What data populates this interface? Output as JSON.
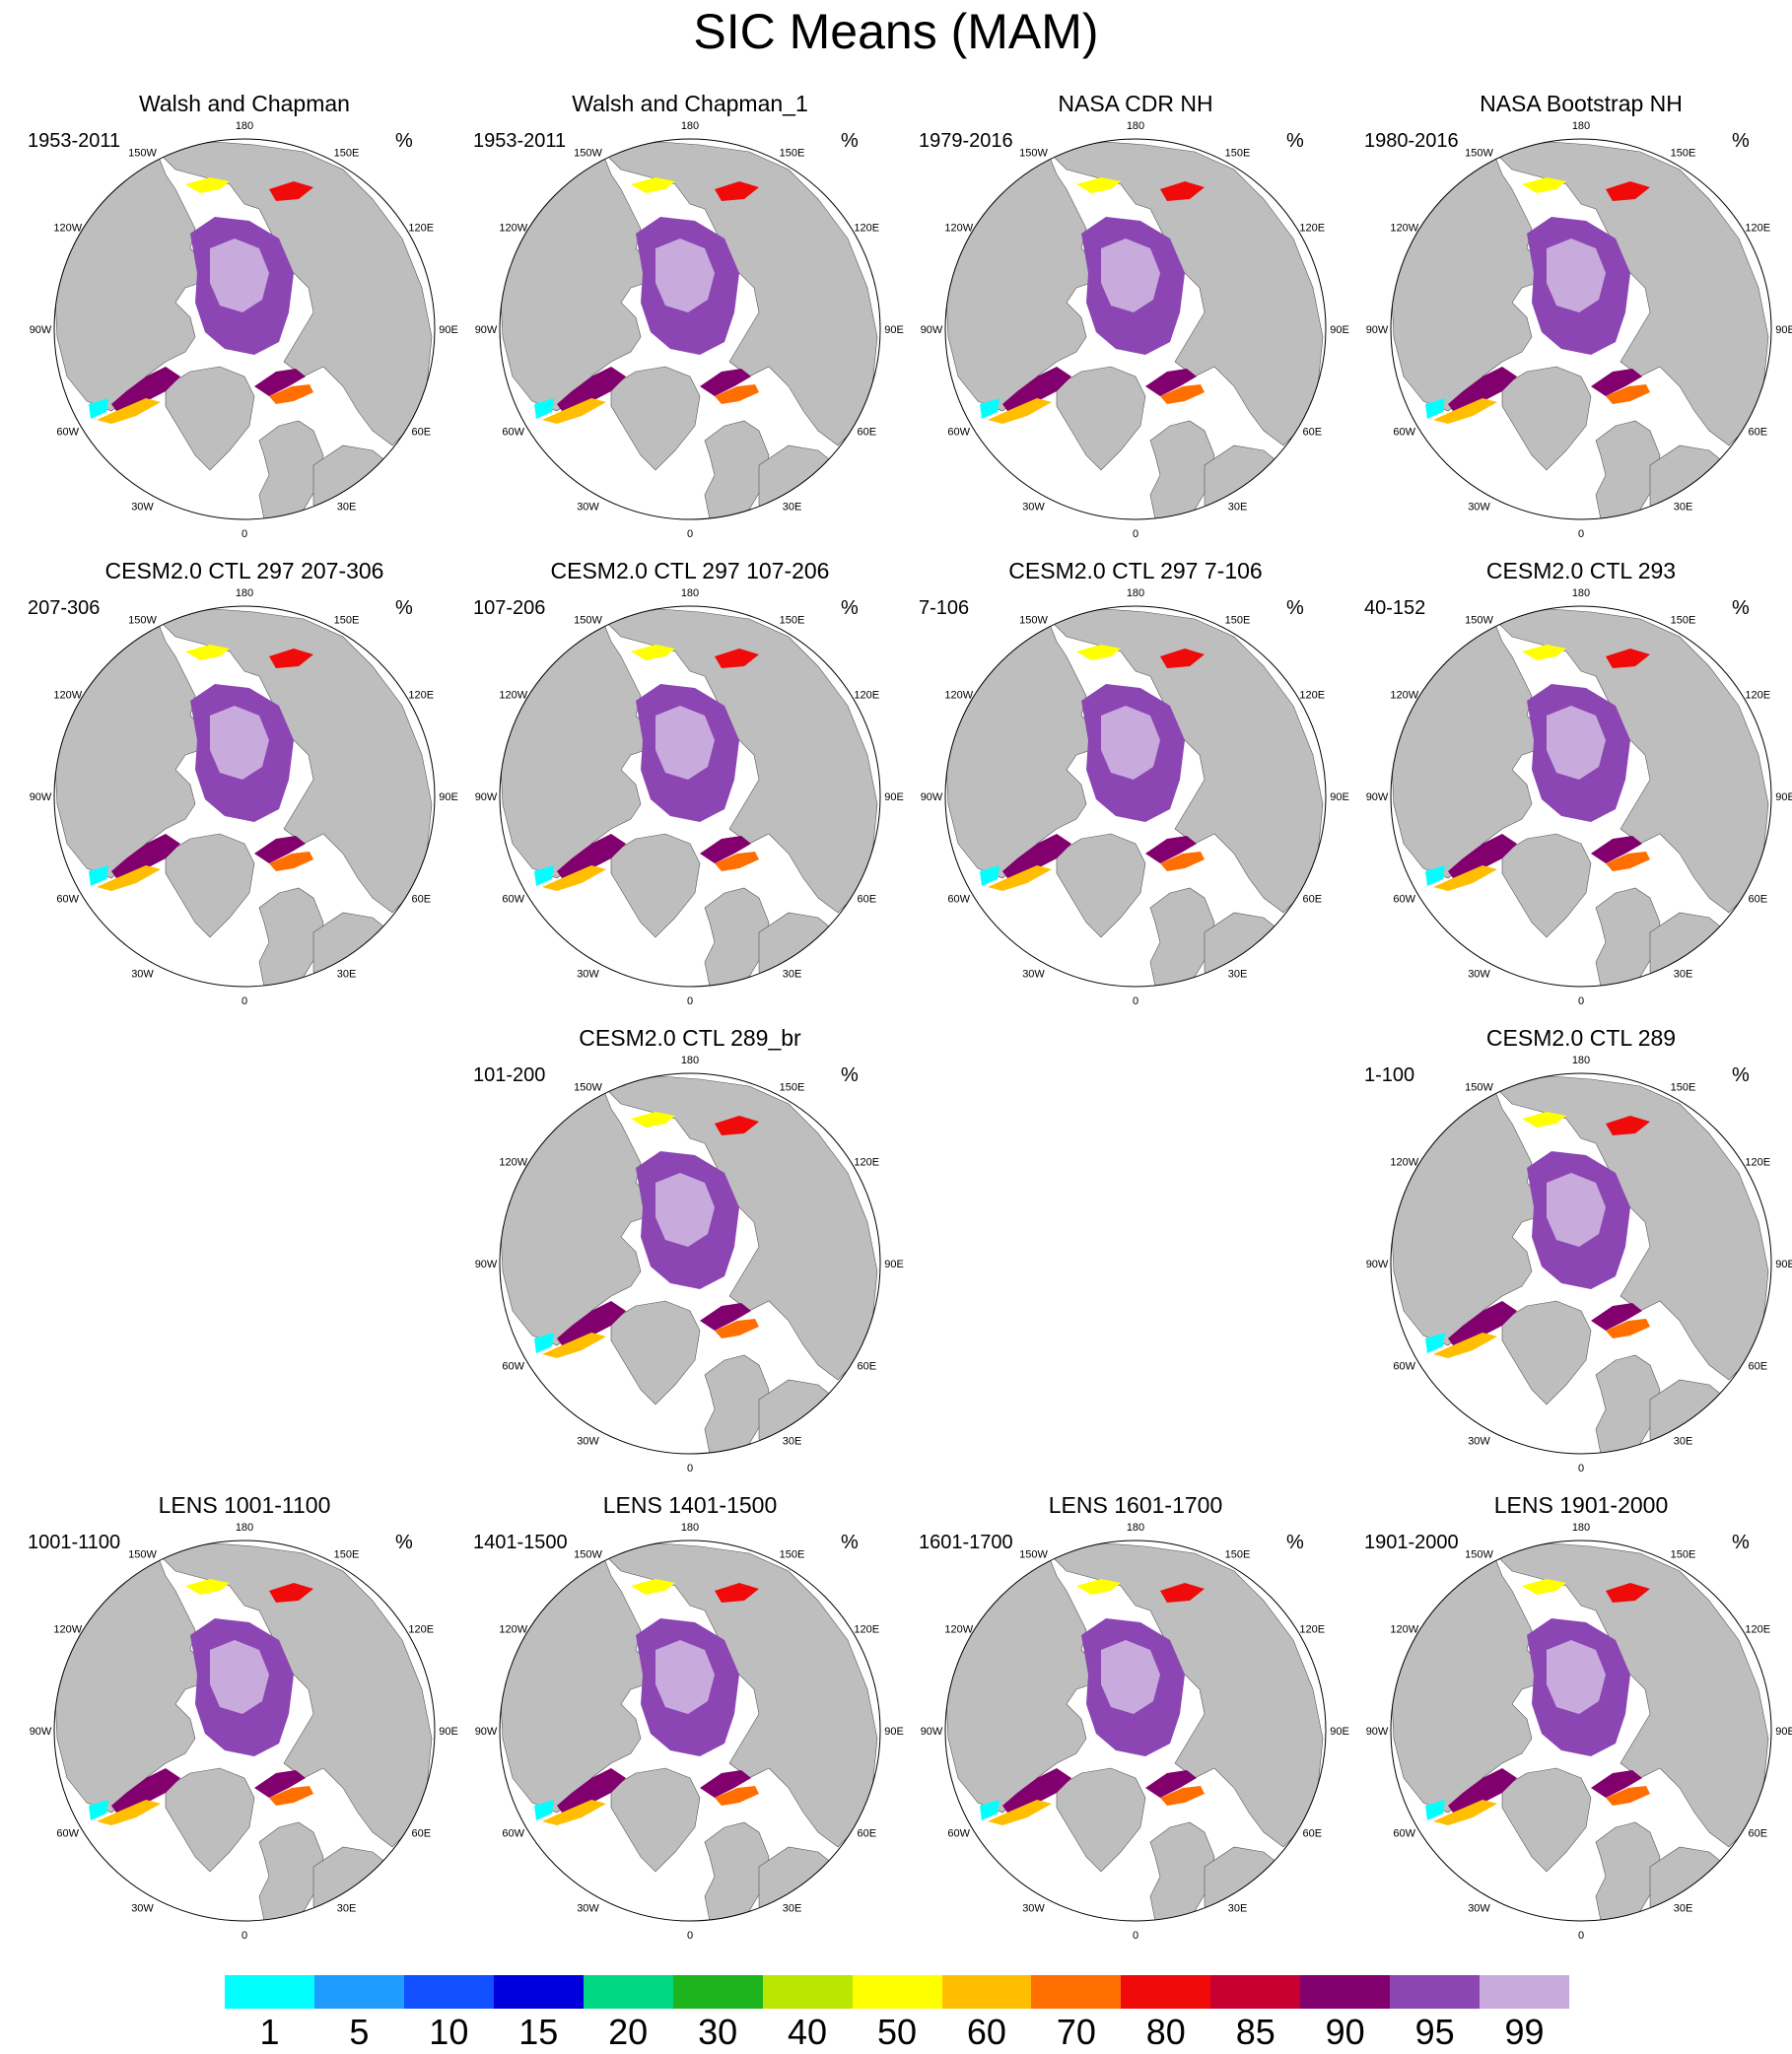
{
  "title": "SIC Means (MAM)",
  "axis_labels": {
    "lon_180": "180",
    "lon_150w": "150W",
    "lon_150e": "150E",
    "lon_120w": "120W",
    "lon_120e": "120E",
    "lon_90w": "90W",
    "lon_90e": "90E",
    "lon_60w": "60W",
    "lon_60e": "60E",
    "lon_30w": "30W",
    "lon_30e": "30E",
    "lon_0": "0"
  },
  "panels": [
    {
      "title": "Walsh and Chapman",
      "range": "1953-2011",
      "unit": "%"
    },
    {
      "title": "Walsh and Chapman_1",
      "range": "1953-2011",
      "unit": "%"
    },
    {
      "title": "NASA CDR NH",
      "range": "1979-2016",
      "unit": "%"
    },
    {
      "title": "NASA Bootstrap NH",
      "range": "1980-2016",
      "unit": "%"
    },
    {
      "title": "CESM2.0 CTL 297 207-306",
      "range": "207-306",
      "unit": "%"
    },
    {
      "title": "CESM2.0 CTL 297 107-206",
      "range": "107-206",
      "unit": "%"
    },
    {
      "title": "CESM2.0 CTL 297 7-106",
      "range": "7-106",
      "unit": "%"
    },
    {
      "title": "CESM2.0 CTL 293",
      "range": "40-152",
      "unit": "%"
    },
    {
      "title": "CESM2.0 CTL 289_br",
      "range": "101-200",
      "unit": "%"
    },
    {
      "title": "CESM2.0 CTL 289",
      "range": "1-100",
      "unit": "%"
    },
    {
      "title": "LENS 1001-1100",
      "range": "1001-1100",
      "unit": "%"
    },
    {
      "title": "LENS 1401-1500",
      "range": "1401-1500",
      "unit": "%"
    },
    {
      "title": "LENS 1601-1700",
      "range": "1601-1700",
      "unit": "%"
    },
    {
      "title": "LENS 1901-2000",
      "range": "1901-2000",
      "unit": "%"
    }
  ],
  "colorbar": {
    "labels": [
      "1",
      "5",
      "10",
      "15",
      "20",
      "30",
      "40",
      "50",
      "60",
      "70",
      "80",
      "85",
      "90",
      "95",
      "99"
    ],
    "colors": [
      "#00ffff",
      "#1e9cff",
      "#1050ff",
      "#0000dc",
      "#00d782",
      "#1eb41e",
      "#bbe600",
      "#ffff00",
      "#ffbe00",
      "#ff6e00",
      "#f00a0a",
      "#c80032",
      "#82006e",
      "#8c46b4",
      "#c8aadc"
    ]
  },
  "colors": {
    "land": "#bebebe",
    "ocean": "#ffffff",
    "ice_full": "#c8aadc",
    "ice_high": "#8c46b4"
  }
}
